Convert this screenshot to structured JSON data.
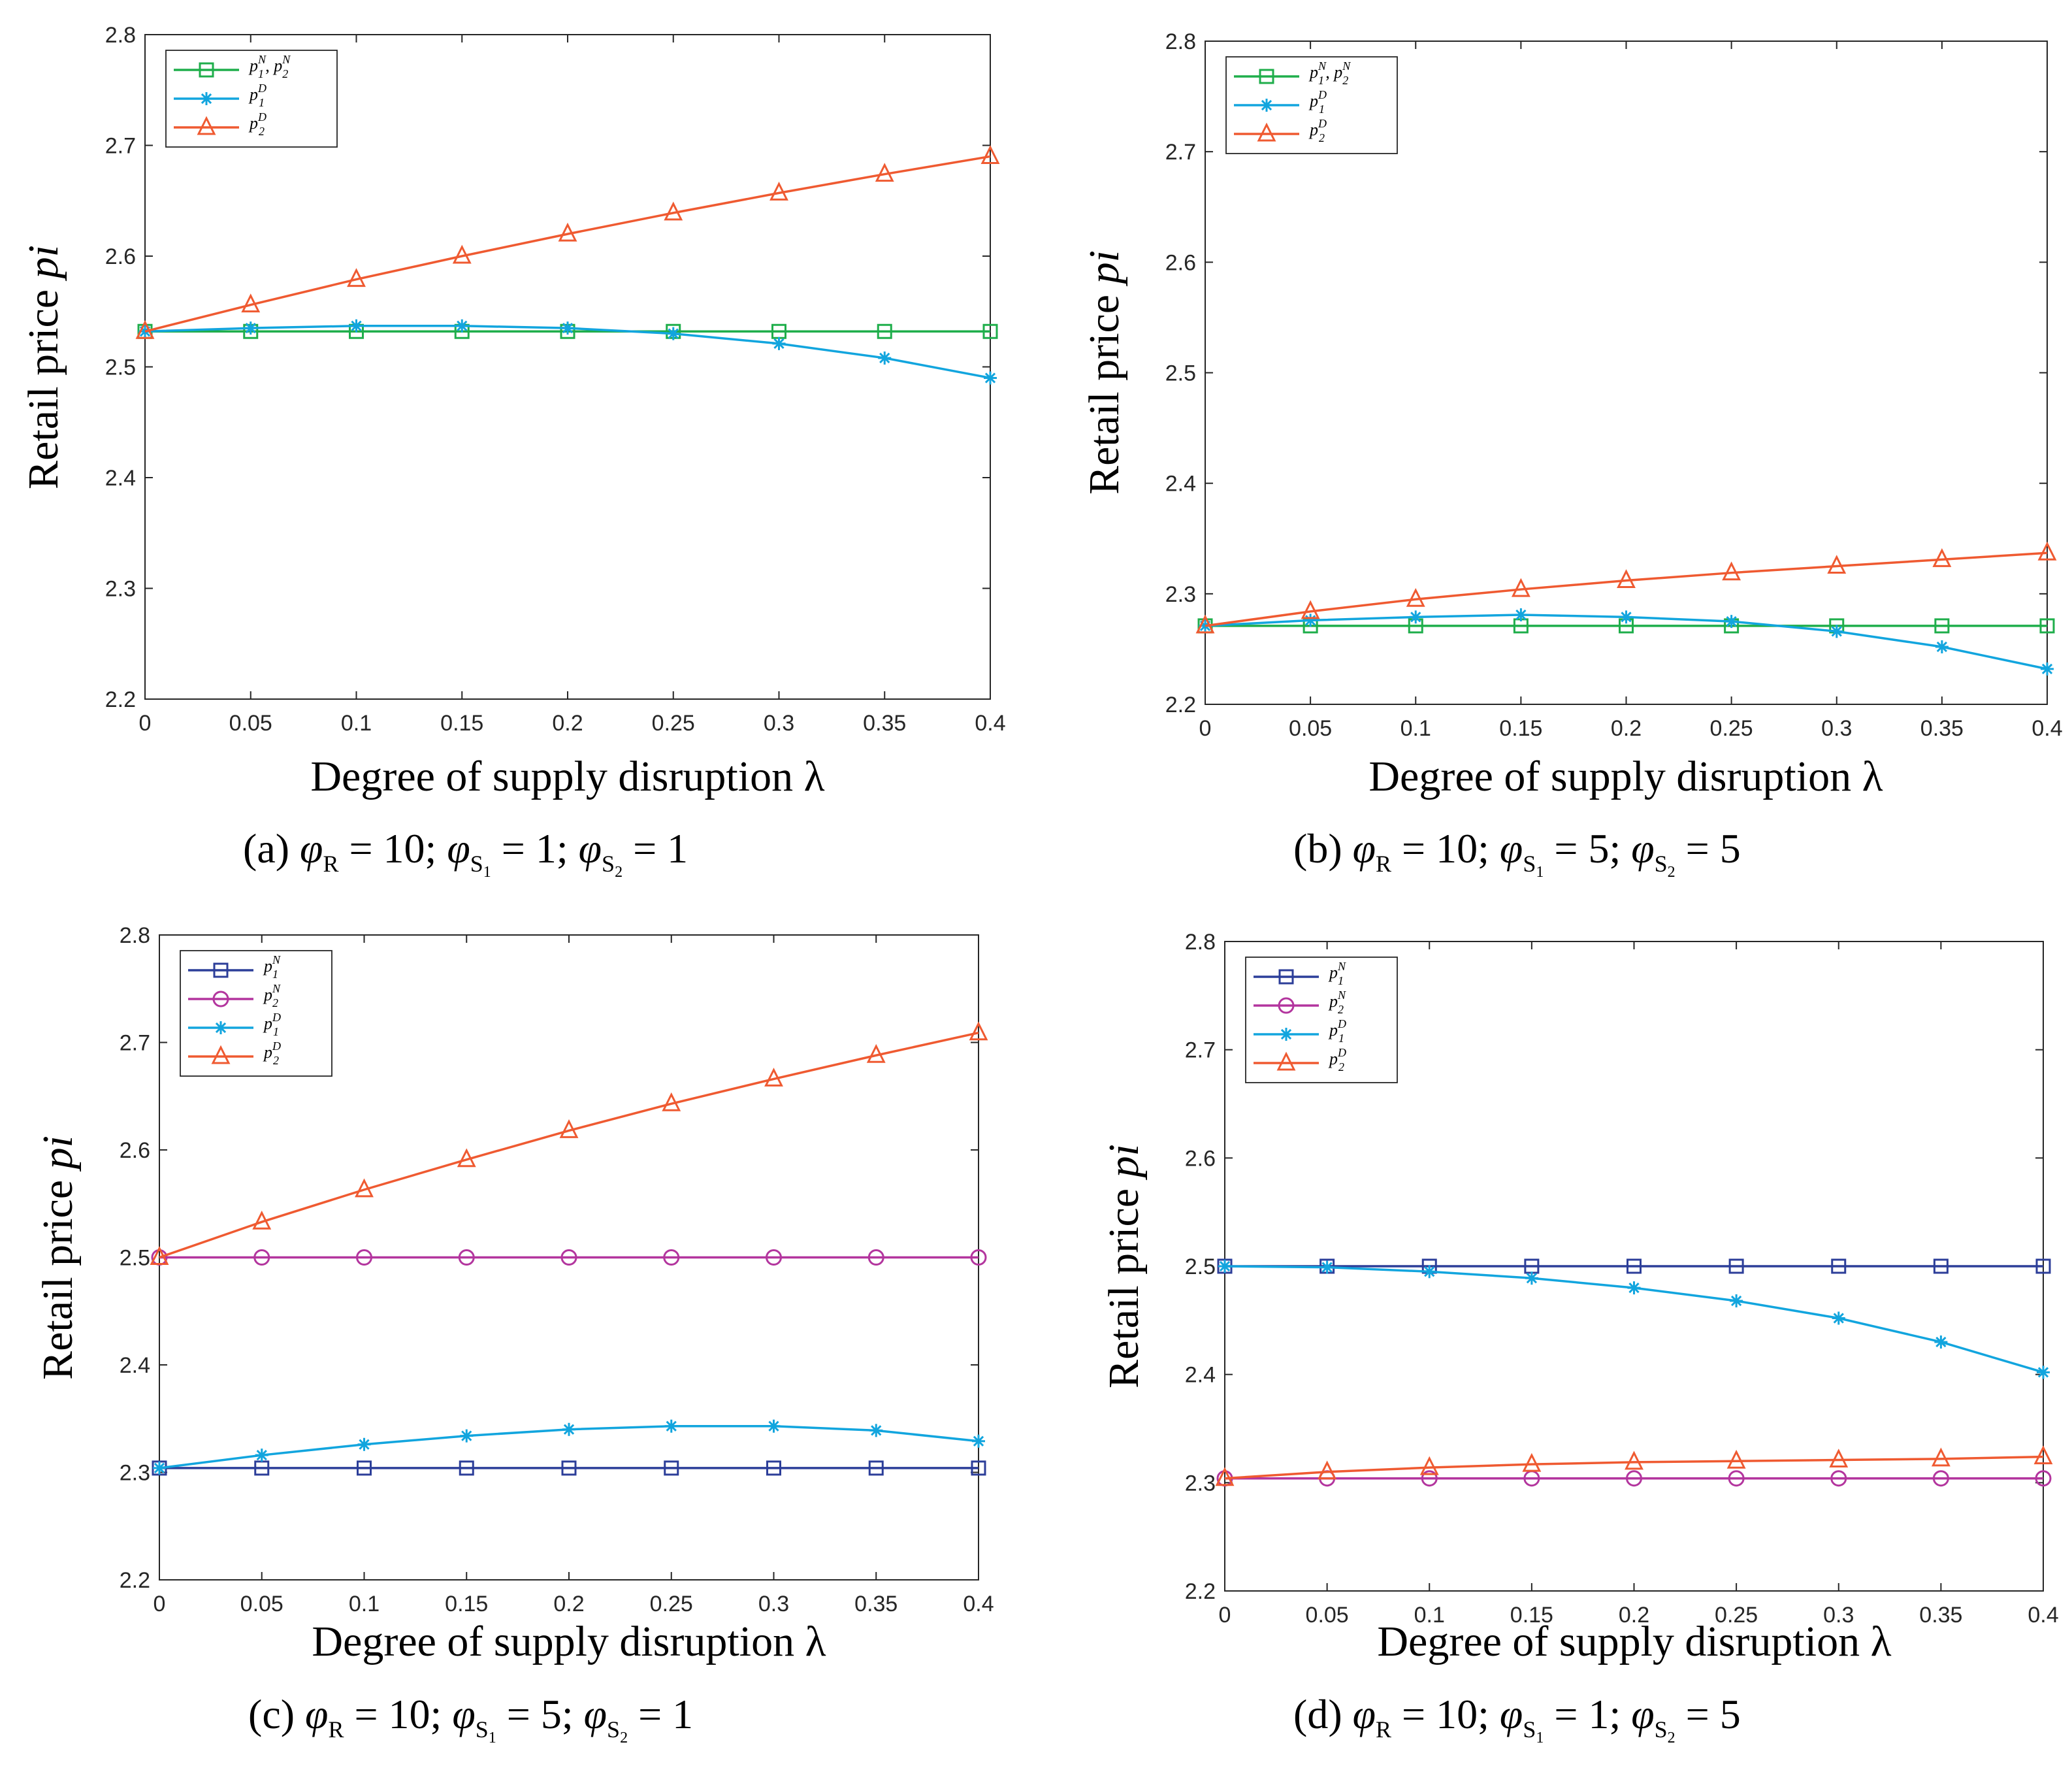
{
  "panels": [
    {
      "id": "a",
      "caption": {
        "letter": "(a)",
        "r_value": "10",
        "s1_value": "1",
        "s2_value": "1"
      },
      "chart_data": {
        "type": "line",
        "xlabel": "Degree of supply disruption λ",
        "ylabel": "Retail price p_i",
        "xlim": [
          0,
          0.4
        ],
        "ylim": [
          2.2,
          2.8
        ],
        "xticks": [
          0,
          0.05,
          0.1,
          0.15,
          0.2,
          0.25,
          0.3,
          0.35,
          0.4
        ],
        "xtick_labels": [
          "0",
          "0.05",
          "0.1",
          "0.15",
          "0.2",
          "0.25",
          "0.3",
          "0.35",
          "0.4"
        ],
        "yticks": [
          2.2,
          2.3,
          2.4,
          2.5,
          2.6,
          2.7,
          2.8
        ],
        "ytick_labels": [
          "2.2",
          "2.3",
          "2.4",
          "2.5",
          "2.6",
          "2.7",
          "2.8"
        ],
        "grid": false,
        "legend_position": "top-left",
        "x": [
          0,
          0.05,
          0.1,
          0.15,
          0.2,
          0.25,
          0.3,
          0.35,
          0.4
        ],
        "series": [
          {
            "name": "p1N, p2N",
            "legend": [
              {
                "base": "p",
                "sub": "1",
                "sup": "N"
              },
              {
                "sep": ", "
              },
              {
                "base": "p",
                "sub": "2",
                "sup": "N"
              }
            ],
            "color": "#1fae4b",
            "marker": "square",
            "values": [
              2.532,
              2.532,
              2.532,
              2.532,
              2.532,
              2.532,
              2.532,
              2.532,
              2.532
            ]
          },
          {
            "name": "p1D",
            "legend": [
              {
                "base": "p",
                "sub": "1",
                "sup": "D"
              }
            ],
            "color": "#12a5de",
            "marker": "star",
            "values": [
              2.532,
              2.535,
              2.537,
              2.537,
              2.535,
              2.53,
              2.521,
              2.508,
              2.49
            ]
          },
          {
            "name": "p2D",
            "legend": [
              {
                "base": "p",
                "sub": "2",
                "sup": "D"
              }
            ],
            "color": "#ef5a31",
            "marker": "triangle",
            "values": [
              2.532,
              2.556,
              2.579,
              2.6,
              2.62,
              2.639,
              2.657,
              2.674,
              2.69
            ]
          }
        ]
      }
    },
    {
      "id": "b",
      "caption": {
        "letter": "(b)",
        "r_value": "10",
        "s1_value": "5",
        "s2_value": "5"
      },
      "chart_data": {
        "type": "line",
        "xlabel": "Degree of supply disruption λ",
        "ylabel": "Retail price p_i",
        "xlim": [
          0,
          0.4
        ],
        "ylim": [
          2.2,
          2.8
        ],
        "xticks": [
          0,
          0.05,
          0.1,
          0.15,
          0.2,
          0.25,
          0.3,
          0.35,
          0.4
        ],
        "xtick_labels": [
          "0",
          "0.05",
          "0.1",
          "0.15",
          "0.2",
          "0.25",
          "0.3",
          "0.35",
          "0.4"
        ],
        "yticks": [
          2.2,
          2.3,
          2.4,
          2.5,
          2.6,
          2.7,
          2.8
        ],
        "ytick_labels": [
          "2.2",
          "2.3",
          "2.4",
          "2.5",
          "2.6",
          "2.7",
          "2.8"
        ],
        "grid": false,
        "legend_position": "top-left",
        "x": [
          0,
          0.05,
          0.1,
          0.15,
          0.2,
          0.25,
          0.3,
          0.35,
          0.4
        ],
        "series": [
          {
            "name": "p1N, p2N",
            "legend": [
              {
                "base": "p",
                "sub": "1",
                "sup": "N"
              },
              {
                "sep": ", "
              },
              {
                "base": "p",
                "sub": "2",
                "sup": "N"
              }
            ],
            "color": "#1fae4b",
            "marker": "square",
            "values": [
              2.271,
              2.271,
              2.271,
              2.271,
              2.271,
              2.271,
              2.271,
              2.271,
              2.271
            ]
          },
          {
            "name": "p1D",
            "legend": [
              {
                "base": "p",
                "sub": "1",
                "sup": "D"
              }
            ],
            "color": "#12a5de",
            "marker": "star",
            "values": [
              2.271,
              2.276,
              2.279,
              2.281,
              2.279,
              2.275,
              2.266,
              2.252,
              2.232
            ]
          },
          {
            "name": "p2D",
            "legend": [
              {
                "base": "p",
                "sub": "2",
                "sup": "D"
              }
            ],
            "color": "#ef5a31",
            "marker": "triangle",
            "values": [
              2.271,
              2.284,
              2.295,
              2.304,
              2.312,
              2.319,
              2.325,
              2.331,
              2.337
            ]
          }
        ]
      }
    },
    {
      "id": "c",
      "caption": {
        "letter": "(c)",
        "r_value": "10",
        "s1_value": "5",
        "s2_value": "1"
      },
      "chart_data": {
        "type": "line",
        "xlabel": "Degree of supply disruption λ",
        "ylabel": "Retail price p_i",
        "xlim": [
          0,
          0.4
        ],
        "ylim": [
          2.2,
          2.8
        ],
        "xticks": [
          0,
          0.05,
          0.1,
          0.15,
          0.2,
          0.25,
          0.3,
          0.35,
          0.4
        ],
        "xtick_labels": [
          "0",
          "0.05",
          "0.1",
          "0.15",
          "0.2",
          "0.25",
          "0.3",
          "0.35",
          "0.4"
        ],
        "yticks": [
          2.2,
          2.3,
          2.4,
          2.5,
          2.6,
          2.7,
          2.8
        ],
        "ytick_labels": [
          "2.2",
          "2.3",
          "2.4",
          "2.5",
          "2.6",
          "2.7",
          "2.8"
        ],
        "grid": false,
        "legend_position": "top-left",
        "x": [
          0,
          0.05,
          0.1,
          0.15,
          0.2,
          0.25,
          0.3,
          0.35,
          0.4
        ],
        "series": [
          {
            "name": "p1N",
            "legend": [
              {
                "base": "p",
                "sub": "1",
                "sup": "N"
              }
            ],
            "color": "#2c3e99",
            "marker": "square",
            "values": [
              2.304,
              2.304,
              2.304,
              2.304,
              2.304,
              2.304,
              2.304,
              2.304,
              2.304
            ]
          },
          {
            "name": "p2N",
            "legend": [
              {
                "base": "p",
                "sub": "2",
                "sup": "N"
              }
            ],
            "color": "#b3359e",
            "marker": "circle",
            "values": [
              2.5,
              2.5,
              2.5,
              2.5,
              2.5,
              2.5,
              2.5,
              2.5,
              2.5
            ]
          },
          {
            "name": "p1D",
            "legend": [
              {
                "base": "p",
                "sub": "1",
                "sup": "D"
              }
            ],
            "color": "#12a5de",
            "marker": "star",
            "values": [
              2.304,
              2.316,
              2.326,
              2.334,
              2.34,
              2.343,
              2.343,
              2.339,
              2.329
            ]
          },
          {
            "name": "p2D",
            "legend": [
              {
                "base": "p",
                "sub": "2",
                "sup": "D"
              }
            ],
            "color": "#ef5a31",
            "marker": "triangle",
            "values": [
              2.5,
              2.533,
              2.563,
              2.591,
              2.618,
              2.643,
              2.666,
              2.688,
              2.709
            ]
          }
        ]
      }
    },
    {
      "id": "d",
      "caption": {
        "letter": "(d)",
        "r_value": "10",
        "s1_value": "1",
        "s2_value": "5"
      },
      "chart_data": {
        "type": "line",
        "xlabel": "Degree of supply disruption λ",
        "ylabel": "Retail price p_i",
        "xlim": [
          0,
          0.4
        ],
        "ylim": [
          2.2,
          2.8
        ],
        "xticks": [
          0,
          0.05,
          0.1,
          0.15,
          0.2,
          0.25,
          0.3,
          0.35,
          0.4
        ],
        "xtick_labels": [
          "0",
          "0.05",
          "0.1",
          "0.15",
          "0.2",
          "0.25",
          "0.3",
          "0.35",
          "0.4"
        ],
        "yticks": [
          2.2,
          2.3,
          2.4,
          2.5,
          2.6,
          2.7,
          2.8
        ],
        "ytick_labels": [
          "2.2",
          "2.3",
          "2.4",
          "2.5",
          "2.6",
          "2.7",
          "2.8"
        ],
        "grid": false,
        "legend_position": "top-left",
        "x": [
          0,
          0.05,
          0.1,
          0.15,
          0.2,
          0.25,
          0.3,
          0.35,
          0.4
        ],
        "series": [
          {
            "name": "p1N",
            "legend": [
              {
                "base": "p",
                "sub": "1",
                "sup": "N"
              }
            ],
            "color": "#2c3e99",
            "marker": "square",
            "values": [
              2.5,
              2.5,
              2.5,
              2.5,
              2.5,
              2.5,
              2.5,
              2.5,
              2.5
            ]
          },
          {
            "name": "p2N",
            "legend": [
              {
                "base": "p",
                "sub": "2",
                "sup": "N"
              }
            ],
            "color": "#b3359e",
            "marker": "circle",
            "values": [
              2.304,
              2.304,
              2.304,
              2.304,
              2.304,
              2.304,
              2.304,
              2.304,
              2.304
            ]
          },
          {
            "name": "p1D",
            "legend": [
              {
                "base": "p",
                "sub": "1",
                "sup": "D"
              }
            ],
            "color": "#12a5de",
            "marker": "star",
            "values": [
              2.5,
              2.499,
              2.495,
              2.489,
              2.48,
              2.468,
              2.452,
              2.43,
              2.402
            ]
          },
          {
            "name": "p2D",
            "legend": [
              {
                "base": "p",
                "sub": "2",
                "sup": "D"
              }
            ],
            "color": "#ef5a31",
            "marker": "triangle",
            "values": [
              2.304,
              2.31,
              2.314,
              2.317,
              2.319,
              2.32,
              2.321,
              2.322,
              2.324
            ]
          }
        ]
      }
    }
  ]
}
